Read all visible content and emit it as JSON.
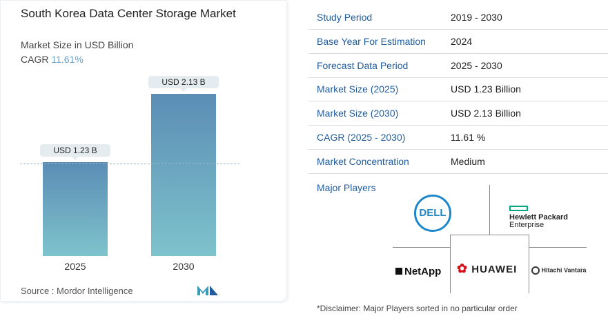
{
  "chart_data": {
    "type": "bar",
    "title": "South Korea Data Center Storage Market",
    "subtitle": "Market Size in USD Billion",
    "cagr_label": "CAGR",
    "cagr_value": "11.61%",
    "categories": [
      "2025",
      "2030"
    ],
    "values": [
      1.23,
      2.13
    ],
    "data_labels": [
      "USD 1.23 B",
      "USD 2.13 B"
    ],
    "colors": [
      "#5b8db5",
      "#7ec3cc"
    ]
  },
  "source": "Source : Mordor Intelligence",
  "table": [
    {
      "k": "Study Period",
      "v": "2019 - 2030"
    },
    {
      "k": "Base Year For Estimation",
      "v": "2024"
    },
    {
      "k": "Forecast Data Period",
      "v": "2025 - 2030"
    },
    {
      "k": "Market Size (2025)",
      "v": "USD 1.23 Billion"
    },
    {
      "k": "Market Size (2030)",
      "v": "USD 2.13 Billion"
    },
    {
      "k": "CAGR (2025 - 2030)",
      "v": "11.61 %"
    },
    {
      "k": "Market Concentration",
      "v": "Medium"
    }
  ],
  "major_players_label": "Major Players",
  "players": [
    "DELL",
    "Hewlett Packard",
    "Enterprise",
    "NetApp",
    "HUAWEI",
    "Hitachi Vantara"
  ],
  "disclaimer": "*Disclaimer: Major Players sorted in no particular order"
}
